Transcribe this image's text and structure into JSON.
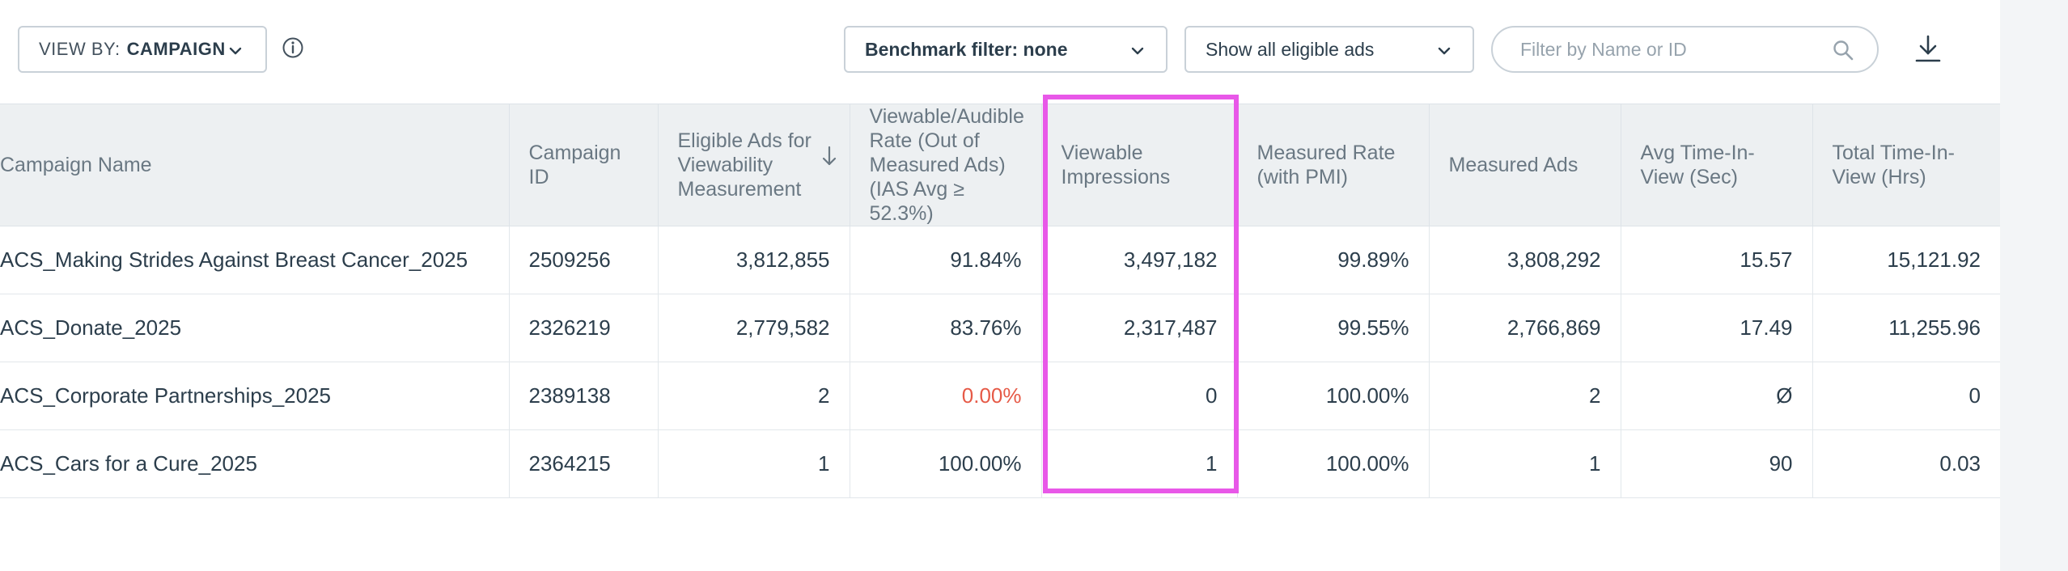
{
  "toolbar": {
    "view_by_label": "VIEW BY:",
    "view_by_value": "CAMPAIGN",
    "benchmark_filter": "Benchmark filter: none",
    "ads_filter": "Show all eligible ads",
    "search_placeholder": "Filter by Name or ID"
  },
  "table": {
    "headers": [
      "Campaign Name",
      "Campaign ID",
      "Eligible Ads for Viewability Measurement",
      "Viewable/Audible Rate (Out of Measured Ads) (IAS Avg ≥ 52.3%)",
      "Viewable Impressions",
      "Measured Rate (with PMI)",
      "Measured Ads",
      "Avg Time-In-View (Sec)",
      "Total Time-In-View (Hrs)"
    ],
    "rows": [
      [
        "ACS_Making Strides Against Breast Cancer_2025",
        "2509256",
        "3,812,855",
        "91.84%",
        "3,497,182",
        "99.89%",
        "3,808,292",
        "15.57",
        "15,121.92"
      ],
      [
        "ACS_Donate_2025",
        "2326219",
        "2,779,582",
        "83.76%",
        "2,317,487",
        "99.55%",
        "2,766,869",
        "17.49",
        "11,255.96"
      ],
      [
        "ACS_Corporate Partnerships_2025",
        "2389138",
        "2",
        "0.00%",
        "0",
        "100.00%",
        "2",
        "Ø",
        "0"
      ],
      [
        "ACS_Cars for a Cure_2025",
        "2364215",
        "1",
        "100.00%",
        "1",
        "100.00%",
        "1",
        "90",
        "0.03"
      ]
    ]
  },
  "colors": {
    "highlight": "#e858e8",
    "negative_rate": "#e65a47",
    "header_bg": "#edf0f2"
  },
  "icons": [
    "chevron-down-icon",
    "info-icon",
    "search-icon",
    "download-icon",
    "sort-down-arrow-icon"
  ]
}
